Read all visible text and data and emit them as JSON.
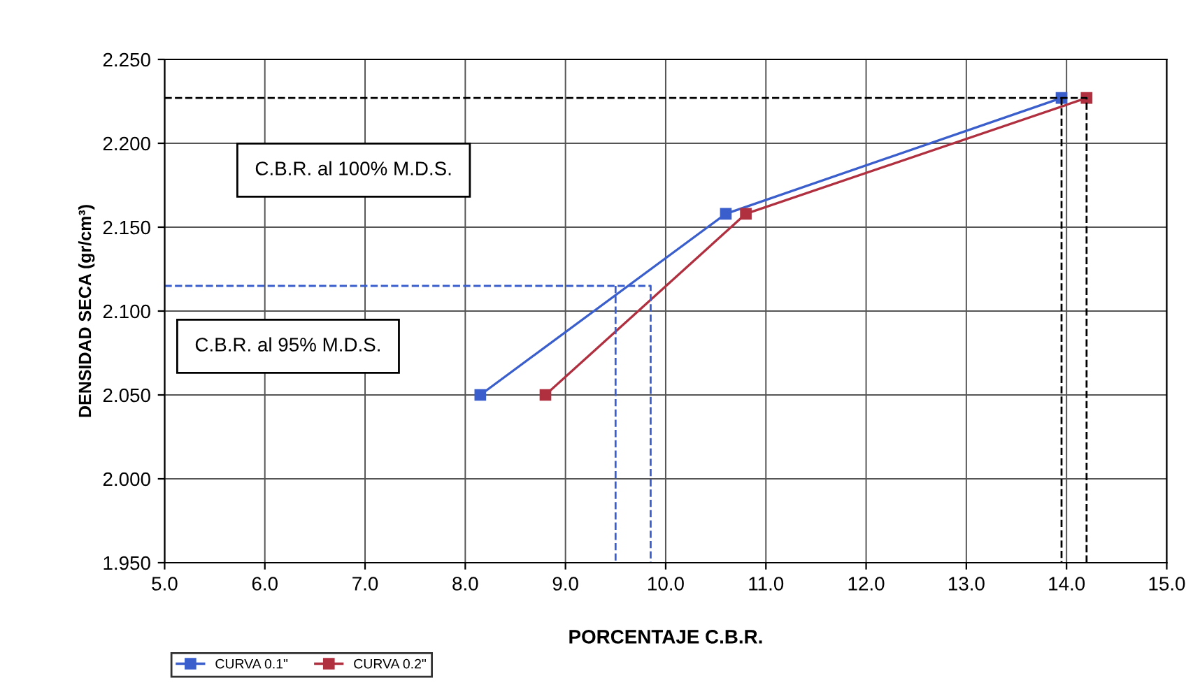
{
  "chart_data": {
    "type": "line",
    "xlabel": "PORCENTAJE C.B.R.",
    "ylabel": "DENSIDAD SECA (gr/cm³)",
    "xlim": [
      5.0,
      15.0
    ],
    "ylim": [
      1.95,
      2.25
    ],
    "xticks": [
      {
        "value": 5,
        "label": "5.0"
      },
      {
        "value": 6,
        "label": "6.0"
      },
      {
        "value": 7,
        "label": "7.0"
      },
      {
        "value": 8,
        "label": "8.0"
      },
      {
        "value": 9,
        "label": "9.0"
      },
      {
        "value": 10,
        "label": "10.0"
      },
      {
        "value": 11,
        "label": "11.0"
      },
      {
        "value": 12,
        "label": "12.0"
      },
      {
        "value": 13,
        "label": "13.0"
      },
      {
        "value": 14,
        "label": "14.0"
      },
      {
        "value": 15,
        "label": "15.0"
      }
    ],
    "yticks": [
      {
        "value": 1.95,
        "label": "1.950"
      },
      {
        "value": 2.0,
        "label": "2.000"
      },
      {
        "value": 2.05,
        "label": "2.050"
      },
      {
        "value": 2.1,
        "label": "2.100"
      },
      {
        "value": 2.15,
        "label": "2.150"
      },
      {
        "value": 2.2,
        "label": "2.200"
      },
      {
        "value": 2.25,
        "label": "2.250"
      }
    ],
    "grid": true,
    "legend": "bottom left",
    "marker": "square",
    "series": [
      {
        "name": "CURVA 0.1\"",
        "color": "#3a5fcd",
        "x": [
          8.15,
          10.6,
          13.95
        ],
        "values": [
          2.05,
          2.158,
          2.227
        ]
      },
      {
        "name": "CURVA 0.2\"",
        "color": "#b03040",
        "x": [
          8.8,
          10.8,
          14.2
        ],
        "values": [
          2.05,
          2.158,
          2.227
        ]
      },
      {
        "color": "#3a5fcd",
        "line_style": "dashed",
        "marker": "none",
        "x": [
          5.0,
          9.85,
          9.85
        ],
        "values": [
          2.115,
          2.115,
          1.95
        ]
      },
      {
        "color": "#3a5fcd",
        "line_style": "dashed",
        "marker": "none",
        "x": [
          9.5,
          9.5
        ],
        "values": [
          2.115,
          1.95
        ]
      },
      {
        "color": "#000000",
        "line_style": "dashed",
        "marker": "none",
        "x": [
          5.0,
          14.2,
          14.2
        ],
        "values": [
          2.227,
          2.227,
          1.95
        ]
      },
      {
        "color": "#000000",
        "line_style": "dashed",
        "marker": "none",
        "x": [
          13.95,
          13.95
        ],
        "values": [
          2.227,
          1.95
        ]
      }
    ],
    "annotations": [
      "C.B.R. al 100% M.D.S.",
      "C.B.R. al 95% M.D.S."
    ]
  }
}
